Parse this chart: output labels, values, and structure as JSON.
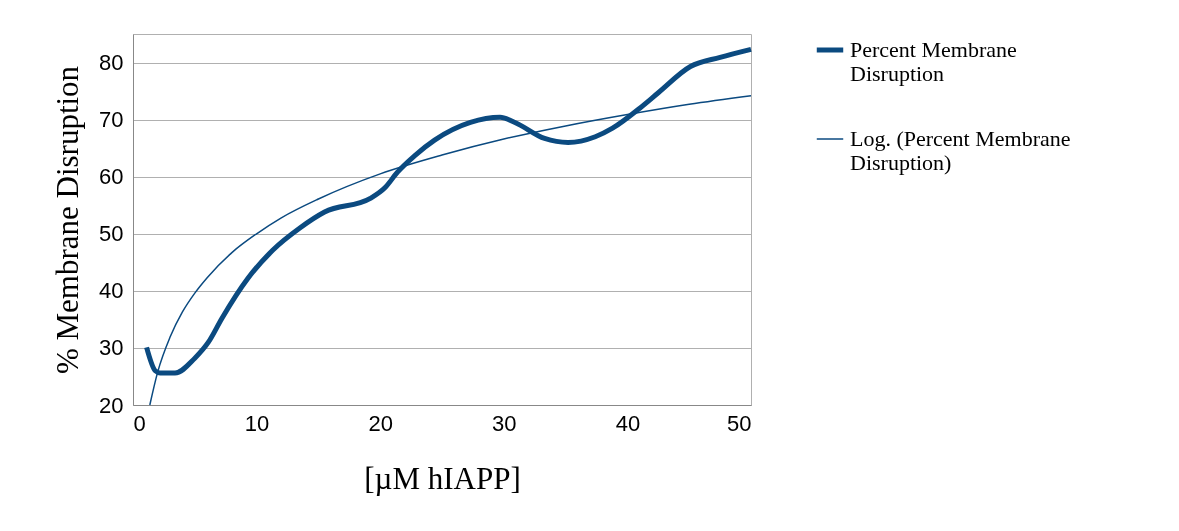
{
  "chart_data": {
    "type": "line",
    "xlabel": "[µM hIAPP]",
    "ylabel": "% Membrane Disruption",
    "xlim": [
      0,
      50
    ],
    "ylim": [
      20,
      85
    ],
    "xticks": [
      0,
      10,
      20,
      30,
      40,
      50
    ],
    "yticks": [
      20,
      30,
      40,
      50,
      60,
      70,
      80
    ],
    "grid": "y",
    "legend": "right",
    "marker": "none",
    "line_style": "solid",
    "x": [
      1.1,
      1.8,
      2.2,
      3.4,
      5.0,
      6.1,
      7.2,
      9.3,
      11.3,
      13.5,
      15.5,
      19.2,
      20.4,
      21.4,
      22.8,
      24.4,
      27.3,
      29.7,
      30.9,
      33.3,
      35.2,
      37.4,
      38.8,
      41.0,
      42.5,
      45.1,
      47.5,
      50.0
    ],
    "series": [
      {
        "name": "Percent Membrane Disruption",
        "color": "#0b4a80",
        "values": [
          30.1,
          26.0,
          25.6,
          25.6,
          28.2,
          31.0,
          35.2,
          42.2,
          47.1,
          51.0,
          53.8,
          56.2,
          58.1,
          60.8,
          63.7,
          66.4,
          69.5,
          70.4,
          69.5,
          66.7,
          66.0,
          67.0,
          68.5,
          72.0,
          74.7,
          79.3,
          80.9,
          82.3
        ]
      },
      {
        "name": "Log. (Percent Membrane Disruption)",
        "color": "#0b4a80",
        "x": [
          1.36,
          2,
          3,
          4,
          5,
          6,
          8,
          10,
          12,
          15,
          20,
          25,
          30,
          35,
          40,
          45,
          50
        ],
        "values": [
          20,
          25.8,
          31.9,
          36.3,
          39.6,
          42.3,
          46.7,
          50.0,
          52.8,
          56.1,
          60.5,
          63.8,
          66.6,
          68.9,
          70.9,
          72.7,
          74.2
        ]
      }
    ]
  }
}
